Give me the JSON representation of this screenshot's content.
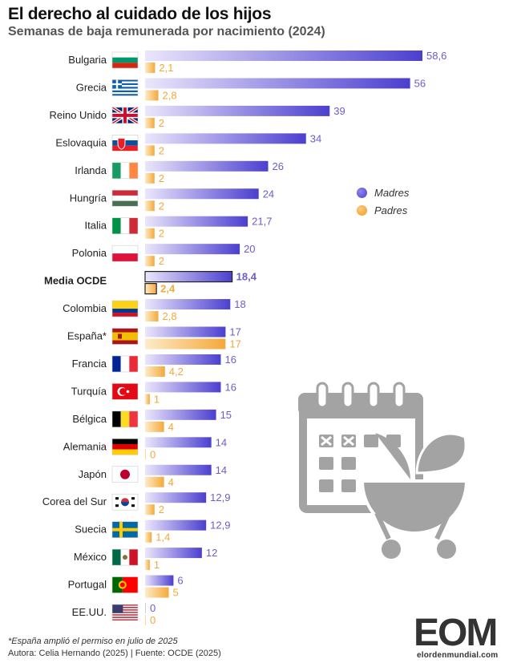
{
  "header": {
    "title": "El derecho al cuidado de los hijos",
    "subtitle": "Semanas de baja remunerada por nacimiento (2024)"
  },
  "legend": {
    "madres": "Madres",
    "padres": "Padres"
  },
  "colors": {
    "madres": "#4b3fcf",
    "madres_light": "#e4defa",
    "padres": "#f4a93a",
    "padres_light": "#fde9c4"
  },
  "chart_data": {
    "type": "bar",
    "orientation": "horizontal",
    "title": "El derecho al cuidado de los hijos",
    "subtitle": "Semanas de baja remunerada por nacimiento (2024)",
    "categories": [
      "Bulgaria",
      "Grecia",
      "Reino Unido",
      "Eslovaquia",
      "Irlanda",
      "Hungría",
      "Italia",
      "Polonia",
      "Media OCDE",
      "Colombia",
      "España*",
      "Francia",
      "Turquía",
      "Bélgica",
      "Alemania",
      "Japón",
      "Corea del Sur",
      "Suecia",
      "México",
      "Portugal",
      "EE.UU."
    ],
    "series": [
      {
        "name": "Madres",
        "values": [
          58.6,
          56,
          39,
          34,
          26,
          24,
          21.7,
          20,
          18.4,
          18,
          17,
          16,
          16,
          15,
          14,
          14,
          12.9,
          12.9,
          12,
          6,
          0
        ]
      },
      {
        "name": "Padres",
        "values": [
          2.1,
          2.8,
          2,
          2,
          2,
          2,
          2,
          2,
          2.4,
          2.8,
          17,
          4.2,
          1,
          4,
          0,
          4,
          2,
          1.4,
          1,
          5,
          0
        ]
      }
    ],
    "labels_madres": [
      "58,6",
      "56",
      "39",
      "34",
      "26",
      "24",
      "21,7",
      "20",
      "18,4",
      "18",
      "17",
      "16",
      "16",
      "15",
      "14",
      "14",
      "12,9",
      "12,9",
      "12",
      "6",
      "0"
    ],
    "labels_padres": [
      "2,1",
      "2,8",
      "2",
      "2",
      "2",
      "2",
      "2",
      "2",
      "2,4",
      "2,8",
      "17",
      "4,2",
      "1",
      "4",
      "0",
      "4",
      "2",
      "1,4",
      "1",
      "5",
      "0"
    ],
    "highlight": "Media OCDE",
    "xlim": [
      0,
      60
    ],
    "legend_position": "right",
    "grid": false
  },
  "footer": {
    "note": "*España amplió el permiso en julio de 2025",
    "credits": "Autora: Celia Hernando (2025) | Fuente: OCDE (2025)",
    "logo_text": "EOM",
    "logo_url": "elordenmundial.com"
  },
  "icons": {
    "illustration": "calendar-with-baby-stroller-icon"
  }
}
